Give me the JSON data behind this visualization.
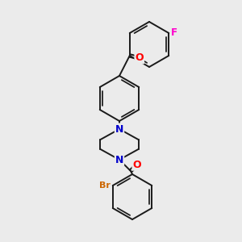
{
  "background_color": "#ebebeb",
  "bond_color": "#1a1a1a",
  "atom_colors": {
    "O": "#ff0000",
    "N": "#0000cc",
    "F": "#ff00cc",
    "Br": "#cc6600"
  },
  "figsize": [
    3.0,
    3.0
  ],
  "dpi": 100,
  "lw": 1.4,
  "r_ring": 28
}
